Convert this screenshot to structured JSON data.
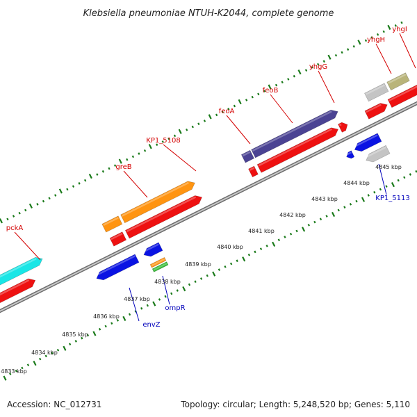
{
  "title": "Klebsiella pneumoniae NTUH-K2044, complete genome",
  "footer": {
    "accession": "Accession: NC_012731",
    "summary": "Topology: circular; Length: 5,248,520 bp; Genes: 5,110"
  },
  "colors": {
    "forward_label": "#d40000",
    "reverse_label": "#0000bb",
    "backbone": "#8c8c8c",
    "ticks": "#1a7a1a",
    "cds": "#ee1111",
    "cyan": "#19e6e6",
    "olive": "#b9b47a",
    "orange": "#ff9411",
    "purple": "#4b4393",
    "grey": "#c4c4c4",
    "blue": "#0a13e3",
    "green": "#33bb33"
  },
  "scale_labels": [
    "4833 kbp",
    "4834 kbp",
    "4835 kbp",
    "4836 kbp",
    "4837 kbp",
    "4838 kbp",
    "4839 kbp",
    "4840 kbp",
    "4841 kbp",
    "4842 kbp",
    "4843 kbp",
    "4844 kbp",
    "4845 kbp"
  ],
  "forward_genes": [
    {
      "name": "pckA"
    },
    {
      "name": "greB"
    },
    {
      "name": "KP1_5108"
    },
    {
      "name": "feoA"
    },
    {
      "name": "feoB"
    },
    {
      "name": "yhgG"
    },
    {
      "name": "yhgH"
    },
    {
      "name": "yhgI"
    }
  ],
  "reverse_genes": [
    {
      "name": "envZ"
    },
    {
      "name": "ompR"
    },
    {
      "name": "KP1_5113"
    }
  ]
}
